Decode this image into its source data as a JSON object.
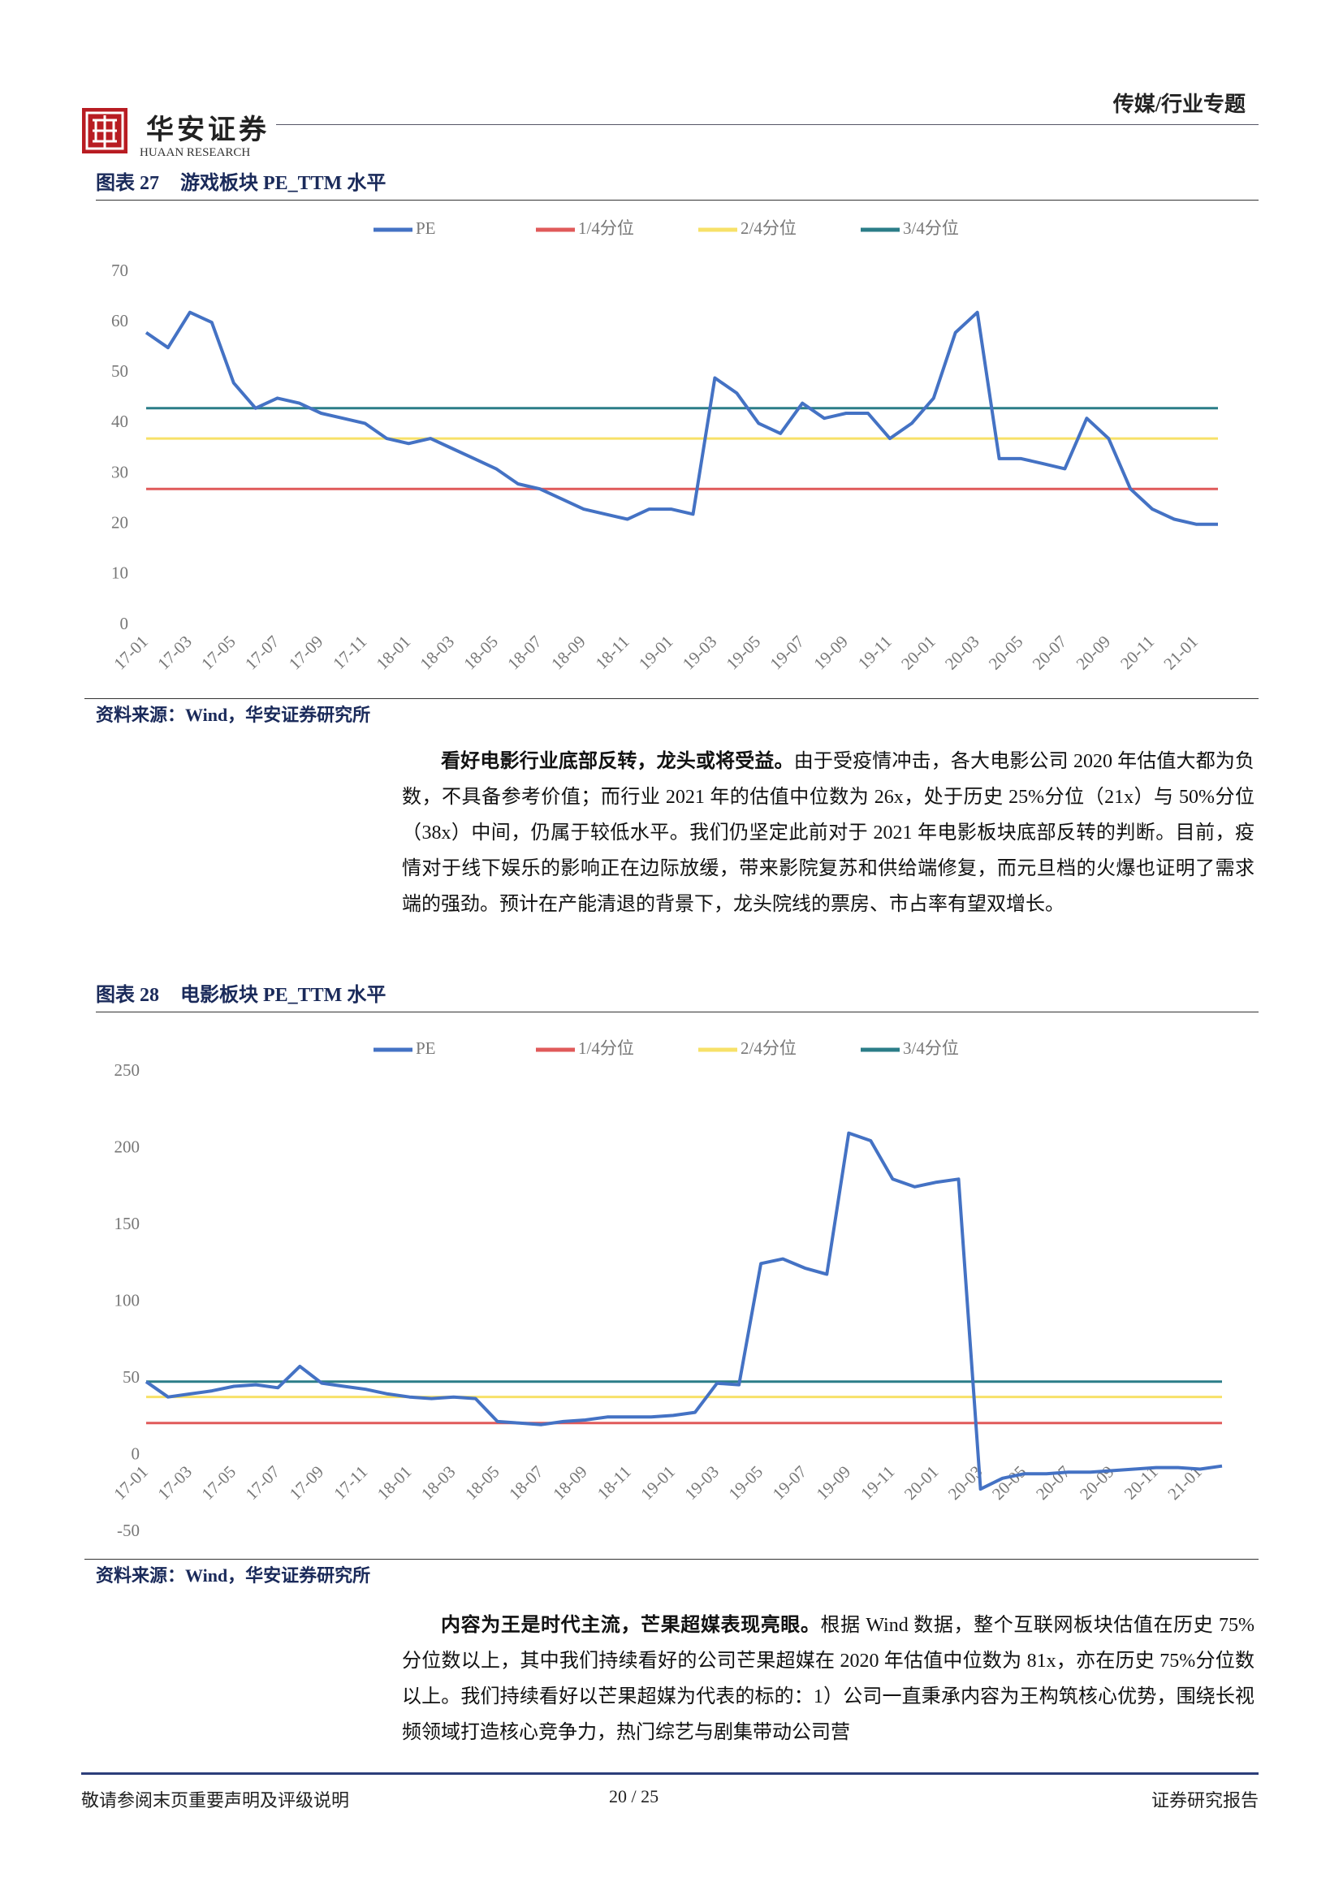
{
  "header": {
    "brand": "华安证券",
    "brand_en": "HUAAN RESEARCH",
    "section": "传媒/行业专题"
  },
  "charts": [
    {
      "label": "图表 27",
      "title": "游戏板块 PE_TTM 水平",
      "source": "资料来源：Wind，华安证券研究所",
      "chart_data": {
        "type": "line",
        "categories": [
          "17-01",
          null,
          "17-03",
          null,
          "17-05",
          null,
          "17-07",
          null,
          "17-09",
          null,
          "17-11",
          null,
          "18-01",
          null,
          "18-03",
          null,
          "18-05",
          null,
          "18-07",
          null,
          "18-09",
          null,
          "18-11",
          null,
          "19-01",
          null,
          "19-03",
          null,
          "19-05",
          null,
          "19-07",
          null,
          "19-09",
          null,
          "19-11",
          null,
          "20-01",
          null,
          "20-03",
          null,
          "20-05",
          null,
          "20-07",
          null,
          "20-09",
          null,
          "20-11",
          null,
          "21-01",
          null
        ],
        "series": [
          {
            "name": "PE",
            "color": "#4472c4",
            "values": [
              58,
              55,
              62,
              60,
              48,
              43,
              45,
              44,
              42,
              41,
              40,
              37,
              36,
              37,
              35,
              33,
              31,
              28,
              27,
              25,
              23,
              22,
              21,
              23,
              23,
              22,
              49,
              46,
              40,
              38,
              44,
              41,
              42,
              42,
              37,
              40,
              45,
              58,
              62,
              33,
              33,
              32,
              31,
              41,
              37,
              27,
              23,
              21,
              20,
              20
            ]
          }
        ],
        "reference_lines": [
          {
            "name": "1/4分位",
            "color": "#e05a5a",
            "value": 27
          },
          {
            "name": "2/4分位",
            "color": "#f7e168",
            "value": 37
          },
          {
            "name": "3/4分位",
            "color": "#2b7d88",
            "value": 43
          }
        ],
        "ylim": [
          0,
          70
        ],
        "yticks": [
          0,
          10,
          20,
          30,
          40,
          50,
          60,
          70
        ],
        "grid": false,
        "legend": "top"
      }
    },
    {
      "label": "图表 28",
      "title": "电影板块 PE_TTM 水平",
      "source": "资料来源：Wind，华安证券研究所",
      "chart_data": {
        "type": "line",
        "categories": [
          "17-01",
          null,
          "17-03",
          null,
          "17-05",
          null,
          "17-07",
          null,
          "17-09",
          null,
          "17-11",
          null,
          "18-01",
          null,
          "18-03",
          null,
          "18-05",
          null,
          "18-07",
          null,
          "18-09",
          null,
          "18-11",
          null,
          "19-01",
          null,
          "19-03",
          null,
          "19-05",
          null,
          "19-07",
          null,
          "19-09",
          null,
          "19-11",
          null,
          "20-01",
          null,
          "20-03",
          null,
          "20-05",
          null,
          "20-07",
          null,
          "20-09",
          null,
          "20-11",
          null,
          "21-01",
          null
        ],
        "series": [
          {
            "name": "PE",
            "color": "#4472c4",
            "values": [
              48,
              38,
              40,
              42,
              45,
              46,
              44,
              58,
              47,
              45,
              43,
              40,
              38,
              37,
              38,
              37,
              22,
              21,
              20,
              22,
              23,
              25,
              25,
              25,
              26,
              28,
              47,
              46,
              125,
              128,
              122,
              118,
              210,
              205,
              180,
              175,
              178,
              180,
              -22,
              -15,
              -12,
              -12,
              -11,
              -11,
              -10,
              -9,
              -8,
              -8,
              -9,
              -7
            ]
          }
        ],
        "reference_lines": [
          {
            "name": "1/4分位",
            "color": "#e05a5a",
            "value": 21
          },
          {
            "name": "2/4分位",
            "color": "#f7e168",
            "value": 38
          },
          {
            "name": "3/4分位",
            "color": "#2b7d88",
            "value": 48
          }
        ],
        "ylim": [
          -50,
          250
        ],
        "yticks": [
          -50,
          0,
          50,
          100,
          150,
          200,
          250
        ],
        "grid": false,
        "legend": "top"
      }
    }
  ],
  "paragraphs": [
    {
      "lead": "看好电影行业底部反转，龙头或将受益。",
      "text": "由于受疫情冲击，各大电影公司 2020 年估值大都为负数，不具备参考价值；而行业 2021 年的估值中位数为 26x，处于历史 25%分位（21x）与 50%分位（38x）中间，仍属于较低水平。我们仍坚定此前对于 2021 年电影板块底部反转的判断。目前，疫情对于线下娱乐的影响正在边际放缓，带来影院复苏和供给端修复，而元旦档的火爆也证明了需求端的强劲。预计在产能清退的背景下，龙头院线的票房、市占率有望双增长。"
    },
    {
      "lead": "内容为王是时代主流，芒果超媒表现亮眼。",
      "text": "根据 Wind 数据，整个互联网板块估值在历史 75%分位数以上，其中我们持续看好的公司芒果超媒在 2020 年估值中位数为 81x，亦在历史 75%分位数以上。我们持续看好以芒果超媒为代表的标的：1）公司一直秉承内容为王构筑核心优势，围绕长视频领域打造核心竞争力，热门综艺与剧集带动公司营"
    }
  ],
  "footer": {
    "disclaimer": "敬请参阅末页重要声明及评级说明",
    "page": "20 / 25",
    "doc_type": "证券研究报告"
  }
}
